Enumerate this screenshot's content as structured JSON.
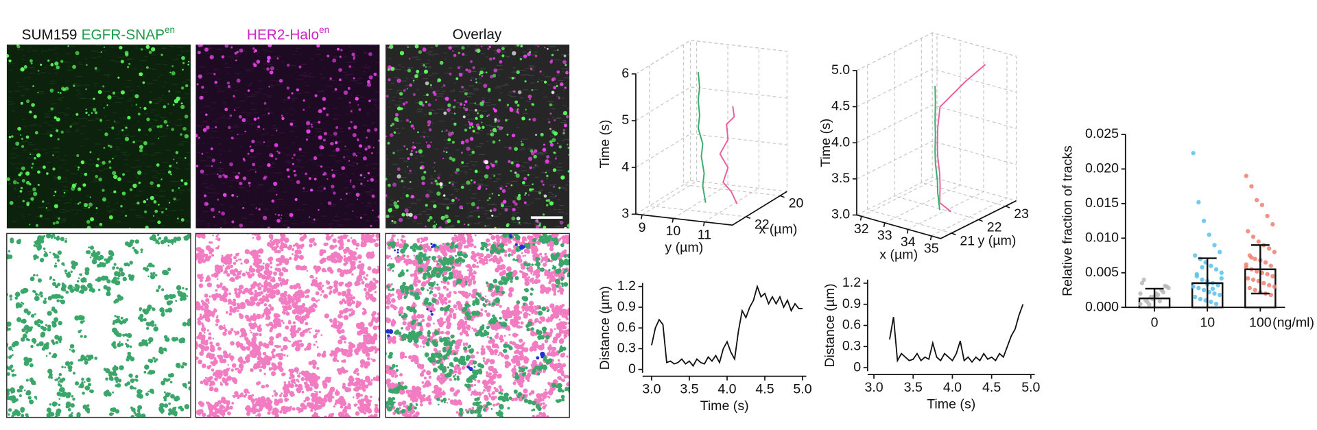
{
  "labels": {
    "cell_line": "SUM159",
    "egfr": "EGFR-SNAP",
    "her2": "HER2-Halo",
    "superscript": "en",
    "overlay": "Overlay"
  },
  "chart_data": [
    {
      "type": "line3d",
      "xlabel": "y (µm)",
      "ylabel": "x (µm)",
      "zlabel": "Time (s)",
      "xlim": [
        8.8,
        11.9
      ],
      "ylim": [
        22.8,
        19.6
      ],
      "zlim": [
        3,
        6
      ],
      "xticks": [
        9,
        10,
        11
      ],
      "yticks": [
        22,
        20
      ],
      "zticks": [
        3,
        4,
        5,
        6
      ],
      "series": [
        {
          "color": "#3daa6e",
          "x": [
            10.6,
            10.4,
            10.5,
            10.3,
            10.4,
            10.2,
            10.3,
            10.2,
            10.3,
            10.2
          ],
          "y": [
            22,
            21.8,
            21.9,
            21.7,
            21.8,
            21.7,
            21.8,
            21.7,
            21.8,
            21.7
          ],
          "z": [
            3.2,
            3.5,
            3.8,
            4.1,
            4.4,
            4.7,
            5.0,
            5.3,
            5.6,
            5.9
          ]
        },
        {
          "color": "#e8609e",
          "x": [
            11.5,
            11.2,
            11.0,
            11.1,
            10.9,
            11.1,
            11.0,
            11.3,
            11.2
          ],
          "y": [
            21.8,
            21.6,
            21.7,
            21.6,
            21.7,
            21.6,
            21.5,
            21.6,
            21.5
          ],
          "z": [
            3.2,
            3.4,
            3.6,
            3.9,
            4.2,
            4.5,
            4.8,
            5.0,
            5.2
          ]
        }
      ]
    },
    {
      "type": "line3d",
      "xlabel": "x (µm)",
      "ylabel": "y (µm)",
      "zlabel": "Time (s)",
      "xlim": [
        31.8,
        35.4
      ],
      "ylim": [
        20.6,
        23.4
      ],
      "zlim": [
        3,
        5
      ],
      "xticks": [
        32,
        33,
        34,
        35
      ],
      "yticks": [
        21,
        22,
        23
      ],
      "zticks": [
        {
          "value": 3,
          "label": "3.0"
        },
        3.5,
        {
          "value": 4,
          "label": "4.0"
        },
        4.5,
        {
          "value": 5,
          "label": "5.0"
        }
      ],
      "series": [
        {
          "color": "#3daa6e",
          "x": [
            34.2,
            34.0,
            34.1,
            33.9,
            34.0,
            33.9,
            34.0,
            33.9,
            34.0
          ],
          "y": [
            21.6,
            21.7,
            21.6,
            21.7,
            21.6,
            21.7,
            21.6,
            21.7,
            21.6
          ],
          "z": [
            3.1,
            3.3,
            3.5,
            3.7,
            3.9,
            4.1,
            4.3,
            4.55,
            4.8
          ]
        },
        {
          "color": "#e8609e",
          "x": [
            34.8,
            34.2,
            34.1,
            34.2,
            34.0,
            34.1,
            34.0,
            34.1,
            34.6,
            35.0
          ],
          "y": [
            21.5,
            21.6,
            21.7,
            21.6,
            21.7,
            21.6,
            21.7,
            21.7,
            22.2,
            22.6
          ],
          "z": [
            3.15,
            3.2,
            3.4,
            3.6,
            3.8,
            4.0,
            4.2,
            4.5,
            4.8,
            5.0
          ]
        }
      ]
    },
    {
      "type": "line",
      "xlabel": "Time (s)",
      "ylabel": "Distance (µm)",
      "color": "#111111",
      "xlim": [
        2.88,
        5.05
      ],
      "ylim": [
        -0.05,
        1.25
      ],
      "xticks": [
        {
          "value": 3,
          "label": "3.0"
        },
        3.5,
        {
          "value": 4,
          "label": "4.0"
        },
        4.5,
        {
          "value": 5,
          "label": "5.0"
        }
      ],
      "yticks": [
        0,
        0.3,
        0.6,
        0.9,
        1.2
      ],
      "x": [
        3.0,
        3.05,
        3.1,
        3.15,
        3.2,
        3.25,
        3.3,
        3.35,
        3.4,
        3.45,
        3.5,
        3.55,
        3.6,
        3.65,
        3.7,
        3.75,
        3.8,
        3.85,
        3.9,
        3.95,
        4.0,
        4.05,
        4.1,
        4.15,
        4.2,
        4.25,
        4.3,
        4.35,
        4.4,
        4.45,
        4.5,
        4.55,
        4.6,
        4.65,
        4.7,
        4.75,
        4.8,
        4.85,
        4.9,
        4.95,
        5.0
      ],
      "values": [
        0.35,
        0.6,
        0.72,
        0.65,
        0.1,
        0.12,
        0.08,
        0.1,
        0.15,
        0.08,
        0.12,
        0.05,
        0.15,
        0.1,
        0.08,
        0.18,
        0.12,
        0.2,
        0.1,
        0.3,
        0.4,
        0.25,
        0.15,
        0.55,
        0.85,
        0.75,
        0.9,
        1.0,
        1.2,
        1.05,
        1.1,
        0.95,
        1.05,
        0.95,
        1.05,
        0.9,
        1.0,
        0.85,
        0.95,
        0.88,
        0.88
      ]
    },
    {
      "type": "line",
      "xlabel": "Time (s)",
      "ylabel": "Distance (µm)",
      "color": "#111111",
      "xlim": [
        2.92,
        5.05
      ],
      "ylim": [
        -0.05,
        1.25
      ],
      "xticks": [
        {
          "value": 3,
          "label": "3.0"
        },
        3.5,
        {
          "value": 4,
          "label": "4.0"
        },
        4.5,
        {
          "value": 5,
          "label": "5.0"
        }
      ],
      "yticks": [
        0,
        0.3,
        0.6,
        0.9,
        1.2
      ],
      "x": [
        3.2,
        3.25,
        3.3,
        3.35,
        3.4,
        3.45,
        3.5,
        3.55,
        3.6,
        3.65,
        3.7,
        3.75,
        3.8,
        3.85,
        3.9,
        3.95,
        4.0,
        4.05,
        4.1,
        4.15,
        4.2,
        4.25,
        4.3,
        4.35,
        4.4,
        4.45,
        4.5,
        4.55,
        4.6,
        4.65,
        4.7,
        4.75,
        4.8,
        4.85,
        4.9
      ],
      "values": [
        0.4,
        0.72,
        0.1,
        0.2,
        0.15,
        0.1,
        0.12,
        0.2,
        0.1,
        0.15,
        0.12,
        0.35,
        0.15,
        0.1,
        0.2,
        0.15,
        0.1,
        0.2,
        0.38,
        0.1,
        0.15,
        0.08,
        0.15,
        0.1,
        0.2,
        0.12,
        0.15,
        0.1,
        0.2,
        0.15,
        0.3,
        0.45,
        0.55,
        0.75,
        0.9
      ]
    },
    {
      "type": "bar",
      "ylabel": "Relative fraction of tracks",
      "xunit": "(ng/ml)",
      "categories": [
        "0",
        "10",
        "100"
      ],
      "values": [
        0.0013,
        0.0035,
        0.0055
      ],
      "errors": [
        0.0014,
        0.0036,
        0.0035
      ],
      "point_colors": [
        "#b8b8b8",
        "#5bc0ec",
        "#f08070"
      ],
      "points": [
        [
          0.0005,
          0.001,
          0.0015,
          0.002,
          0.0025,
          0.003,
          0.0035,
          0.0008,
          0.0012,
          0.0018,
          0.0022,
          0.0028,
          0.004,
          0.0004,
          0.0016,
          0.0009,
          0.0031,
          0.002
        ],
        [
          0.0223,
          0.0152,
          0.0125,
          0.0105,
          0.009,
          0.008,
          0.0075,
          0.007,
          0.0065,
          0.006,
          0.0055,
          0.005,
          0.0045,
          0.004,
          0.0038,
          0.0035,
          0.0032,
          0.003,
          0.0028,
          0.0025,
          0.0022,
          0.002,
          0.0018,
          0.0015,
          0.0012,
          0.001,
          0.0008,
          0.0005,
          0.0042,
          0.0048,
          0.0058,
          0.0033,
          0.0027
        ],
        [
          0.019,
          0.0175,
          0.0155,
          0.0148,
          0.0132,
          0.012,
          0.011,
          0.0102,
          0.0095,
          0.009,
          0.0085,
          0.008,
          0.0075,
          0.007,
          0.0068,
          0.0065,
          0.006,
          0.0058,
          0.0055,
          0.0052,
          0.005,
          0.0048,
          0.0045,
          0.0042,
          0.004,
          0.0038,
          0.0035,
          0.0032,
          0.003,
          0.0028,
          0.0025,
          0.0022,
          0.002,
          0.0018,
          0.0062,
          0.0072
        ]
      ],
      "ylim": [
        0,
        0.025
      ],
      "yticks": [
        {
          "value": 0,
          "label": "0.000"
        },
        {
          "value": 0.005,
          "label": "0.005"
        },
        {
          "value": 0.01,
          "label": "0.010"
        },
        {
          "value": 0.015,
          "label": "0.015"
        },
        {
          "value": 0.02,
          "label": "0.020"
        },
        {
          "value": 0.025,
          "label": "0.025"
        }
      ]
    }
  ]
}
